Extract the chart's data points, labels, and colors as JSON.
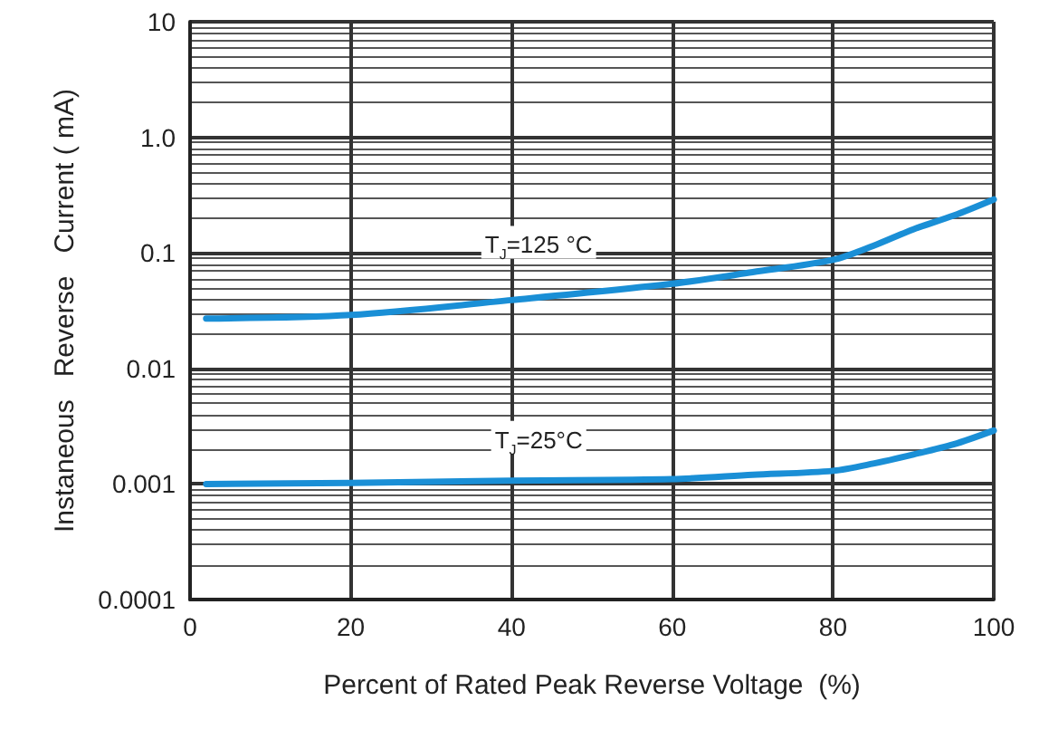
{
  "chart_data": {
    "type": "line",
    "xlabel": "Percent of Rated Peak Reverse Voltage  (%)",
    "ylabel": "Instaneous   Reverse   Current ( mA)",
    "log": "y",
    "grid": true,
    "marker": "none",
    "line_style": "solid",
    "xlim": [
      0,
      100
    ],
    "xticks": [
      0,
      20,
      40,
      60,
      80,
      100
    ],
    "ylim": [
      0.0001,
      10
    ],
    "yticks": [
      0.0001,
      0.001,
      0.01,
      0.1,
      {
        "value": 1,
        "label": "1.0"
      },
      10
    ],
    "series": [
      {
        "color": "#1a8fd6",
        "x": [
          2,
          20,
          40,
          60,
          70,
          80,
          85,
          90,
          95,
          100
        ],
        "values": [
          0.027,
          0.029,
          0.039,
          0.054,
          0.068,
          0.087,
          0.115,
          0.16,
          0.21,
          0.29
        ]
      },
      {
        "color": "#1a8fd6",
        "x": [
          2,
          20,
          40,
          60,
          70,
          80,
          85,
          90,
          95,
          100
        ],
        "values": [
          0.001,
          0.00102,
          0.00107,
          0.0011,
          0.0012,
          0.0013,
          0.0015,
          0.0018,
          0.0022,
          0.0029
        ]
      }
    ],
    "annotations": [
      "T$_{J}$=125 °C",
      "T$_{J}$=25°C"
    ]
  }
}
